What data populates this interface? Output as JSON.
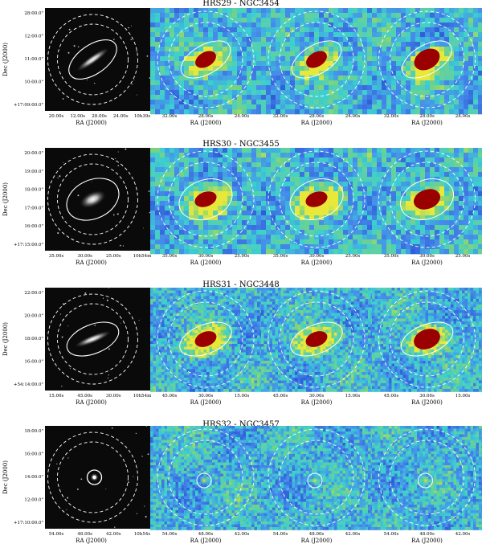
{
  "figure": {
    "rows": [
      {
        "title": "HRS29 - NGC3454",
        "ylabel": "Dec (J2000)",
        "dec_ticks": [
          "28:00.0\"",
          "12:00.0\"",
          "11:00.0\"",
          "10:00.0\"",
          "+17:09:00.0\""
        ],
        "optical_ra_ticks": [
          "20.00s",
          "12.00s",
          "28.00s",
          "24.00s",
          "10h39s"
        ],
        "map_ra_ticks": [
          "32.00s",
          "28.00s",
          "24.00s"
        ],
        "xlabel": "RA (J2000)",
        "galaxy": {
          "kind": "edge-on",
          "angle": -35
        },
        "map_angle": -30
      },
      {
        "title": "HRS30 - NGC3455",
        "ylabel": "Dec (J2000)",
        "dec_ticks": [
          "20:00.0\"",
          "19:00.0\"",
          "18:00.0\"",
          "17:00.0\"",
          "16:00.0\"",
          "+17:15:00.0\""
        ],
        "optical_ra_ticks": [
          "35.00s",
          "30.00s",
          "25.00s",
          "10h54m"
        ],
        "map_ra_ticks": [
          "35.00s",
          "30.00s",
          "25.00s"
        ],
        "xlabel": "RA (J2000)",
        "galaxy": {
          "kind": "oval",
          "angle": -25
        },
        "map_angle": -20
      },
      {
        "title": "HRS31 - NGC3448",
        "ylabel": "Dec (J2000)",
        "dec_ticks": [
          "22:00.0\"",
          "20:00.0\"",
          "18:00.0\"",
          "16:00.0\"",
          "+54:14:00.0\""
        ],
        "optical_ra_ticks": [
          "15.00s",
          "45.00s",
          "30.00s",
          "10h54m"
        ],
        "map_ra_ticks": [
          "45.00s",
          "30.00s",
          "15.00s"
        ],
        "xlabel": "RA (J2000)",
        "galaxy": {
          "kind": "edge-on",
          "angle": -22
        },
        "map_angle": -22
      },
      {
        "title": "HRS32 - NGC3457",
        "ylabel": "Dec (J2000)",
        "dec_ticks": [
          "18:00.0\"",
          "16:00.0\"",
          "14:00.0\"",
          "12:00.0\"",
          "+17:10:00.0\""
        ],
        "optical_ra_ticks": [
          "54.00s",
          "48.00s",
          "42.00s",
          "10h54s"
        ],
        "map_ra_ticks": [
          "54.00s",
          "48.00s",
          "42.00s"
        ],
        "xlabel": "RA (J2000)",
        "galaxy": {
          "kind": "point",
          "angle": 0
        },
        "map_angle": 0
      }
    ],
    "colors": {
      "background": "#ffffff",
      "optical_sky": "#0a0a0a",
      "map_low": "#1e3cc8",
      "map_mid": "#3ccfd0",
      "map_high": "#e8e83a",
      "map_peak": "#9a0000",
      "contour": "#ffffff"
    }
  }
}
